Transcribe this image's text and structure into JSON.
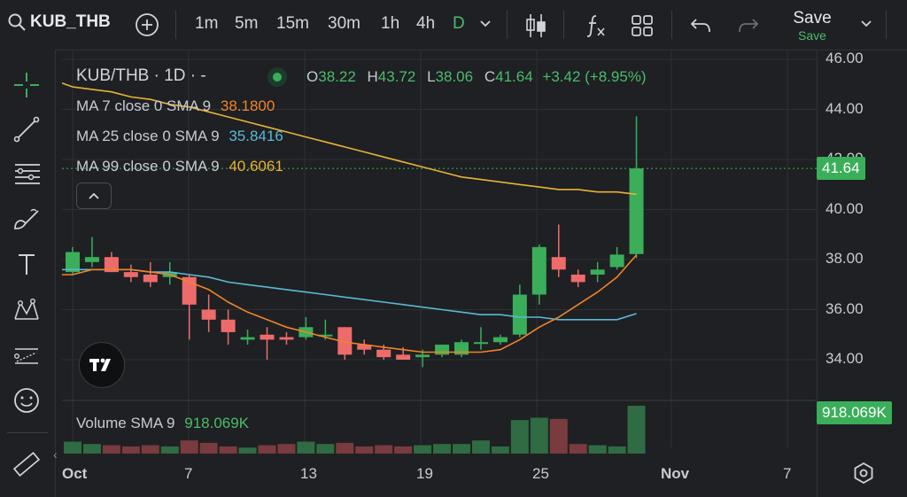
{
  "toolbar": {
    "symbol": "KUB_THB",
    "timeframes": [
      "1m",
      "5m",
      "15m",
      "30m",
      "1h",
      "4h",
      "D"
    ],
    "active_timeframe": "D",
    "save_label": "Save",
    "save_sub": "Save"
  },
  "legend": {
    "title": "KUB/THB · 1D · -",
    "ohlc": {
      "o_label": "O",
      "o": "38.22",
      "h_label": "H",
      "h": "43.72",
      "l_label": "L",
      "l": "38.06",
      "c_label": "C",
      "c": "41.64",
      "chg": "+3.42 (+8.95%)"
    },
    "ma7_label": "MA 7 close 0 SMA 9",
    "ma7_value": "38.1800",
    "ma25_label": "MA 25 close 0 SMA 9",
    "ma25_value": "35.8416",
    "ma99_label": "MA 99 close 0 SMA 9",
    "ma99_value": "40.6061",
    "volume_label": "Volume SMA 9",
    "volume_value": "918.069K"
  },
  "price_badge": "41.64",
  "volume_badge": "918.069K",
  "colors": {
    "up": "#3bae5a",
    "down": "#ee6b6b",
    "ma7": "#f0832a",
    "ma25": "#5bb8d4",
    "ma99": "#e8b236",
    "bg": "#1e2023"
  },
  "chart_data": {
    "type": "candlestick",
    "y_ticks": [
      "46.00",
      "44.00",
      "42.00",
      "40.00",
      "38.00",
      "36.00",
      "34.00"
    ],
    "ylim": [
      33.0,
      46.0
    ],
    "x_ticks": [
      "Oct",
      "7",
      "13",
      "19",
      "25",
      "Nov",
      "7"
    ],
    "candles": [
      {
        "o": 37.5,
        "h": 38.5,
        "l": 37.4,
        "c": 38.3
      },
      {
        "o": 37.9,
        "h": 38.9,
        "l": 37.7,
        "c": 38.1
      },
      {
        "o": 38.1,
        "h": 38.3,
        "l": 37.5,
        "c": 37.5
      },
      {
        "o": 37.5,
        "h": 37.8,
        "l": 37.1,
        "c": 37.3
      },
      {
        "o": 37.4,
        "h": 37.9,
        "l": 36.9,
        "c": 37.1
      },
      {
        "o": 37.3,
        "h": 37.9,
        "l": 37.0,
        "c": 37.5
      },
      {
        "o": 37.3,
        "h": 37.4,
        "l": 34.8,
        "c": 36.2
      },
      {
        "o": 36.0,
        "h": 36.6,
        "l": 35.1,
        "c": 35.6
      },
      {
        "o": 35.6,
        "h": 36.0,
        "l": 34.6,
        "c": 35.1
      },
      {
        "o": 34.8,
        "h": 35.2,
        "l": 34.6,
        "c": 34.9
      },
      {
        "o": 35.0,
        "h": 35.3,
        "l": 34.0,
        "c": 34.8
      },
      {
        "o": 34.9,
        "h": 35.1,
        "l": 34.6,
        "c": 34.8
      },
      {
        "o": 34.9,
        "h": 35.7,
        "l": 34.8,
        "c": 35.3
      },
      {
        "o": 35.0,
        "h": 35.6,
        "l": 34.8,
        "c": 35.0
      },
      {
        "o": 35.3,
        "h": 35.3,
        "l": 34.0,
        "c": 34.2
      },
      {
        "o": 34.6,
        "h": 34.8,
        "l": 34.2,
        "c": 34.4
      },
      {
        "o": 34.4,
        "h": 34.6,
        "l": 34.0,
        "c": 34.1
      },
      {
        "o": 34.2,
        "h": 34.5,
        "l": 34.0,
        "c": 34.0
      },
      {
        "o": 34.1,
        "h": 34.4,
        "l": 33.7,
        "c": 34.2
      },
      {
        "o": 34.2,
        "h": 34.6,
        "l": 34.1,
        "c": 34.6
      },
      {
        "o": 34.2,
        "h": 34.8,
        "l": 34.1,
        "c": 34.7
      },
      {
        "o": 34.7,
        "h": 35.3,
        "l": 34.4,
        "c": 34.7
      },
      {
        "o": 34.7,
        "h": 35.0,
        "l": 34.6,
        "c": 34.9
      },
      {
        "o": 35.0,
        "h": 37.0,
        "l": 34.9,
        "c": 36.6
      },
      {
        "o": 36.6,
        "h": 38.6,
        "l": 36.2,
        "c": 38.5
      },
      {
        "o": 38.1,
        "h": 39.4,
        "l": 37.3,
        "c": 37.6
      },
      {
        "o": 37.4,
        "h": 37.6,
        "l": 36.9,
        "c": 37.1
      },
      {
        "o": 37.4,
        "h": 37.9,
        "l": 37.1,
        "c": 37.6
      },
      {
        "o": 37.7,
        "h": 38.5,
        "l": 37.6,
        "c": 38.2
      },
      {
        "o": 38.22,
        "h": 43.72,
        "l": 38.06,
        "c": 41.64
      }
    ],
    "volumes": [
      0.5,
      0.4,
      0.35,
      0.3,
      0.35,
      0.3,
      0.55,
      0.45,
      0.3,
      0.25,
      0.35,
      0.4,
      0.5,
      0.4,
      0.45,
      0.3,
      0.35,
      0.3,
      0.35,
      0.4,
      0.4,
      0.55,
      0.3,
      1.4,
      1.5,
      1.45,
      0.4,
      0.35,
      0.3,
      2.0
    ],
    "ma7": [
      37.4,
      37.6,
      37.6,
      37.6,
      37.5,
      37.4,
      37.1,
      36.8,
      36.3,
      35.9,
      35.6,
      35.3,
      35.1,
      34.9,
      34.7,
      34.6,
      34.5,
      34.4,
      34.3,
      34.3,
      34.3,
      34.3,
      34.4,
      34.8,
      35.3,
      35.7,
      36.2,
      36.7,
      37.3,
      38.18
    ],
    "ma25_start_index": 0,
    "ma25": [
      37.6,
      37.6,
      37.6,
      37.6,
      37.5,
      37.5,
      37.4,
      37.3,
      37.1,
      37.0,
      36.9,
      36.8,
      36.7,
      36.6,
      36.5,
      36.4,
      36.3,
      36.2,
      36.1,
      36.0,
      35.9,
      35.8,
      35.8,
      35.7,
      35.7,
      35.6,
      35.6,
      35.6,
      35.6,
      35.84
    ],
    "ma99_x_from": 0,
    "ma99": [
      44.9,
      44.8,
      44.7,
      44.5,
      44.4,
      44.2,
      44.1,
      43.9,
      43.7,
      43.5,
      43.3,
      43.1,
      42.9,
      42.7,
      42.5,
      42.3,
      42.1,
      41.9,
      41.7,
      41.5,
      41.3,
      41.2,
      41.1,
      41.0,
      40.9,
      40.8,
      40.8,
      40.7,
      40.7,
      40.61
    ]
  }
}
